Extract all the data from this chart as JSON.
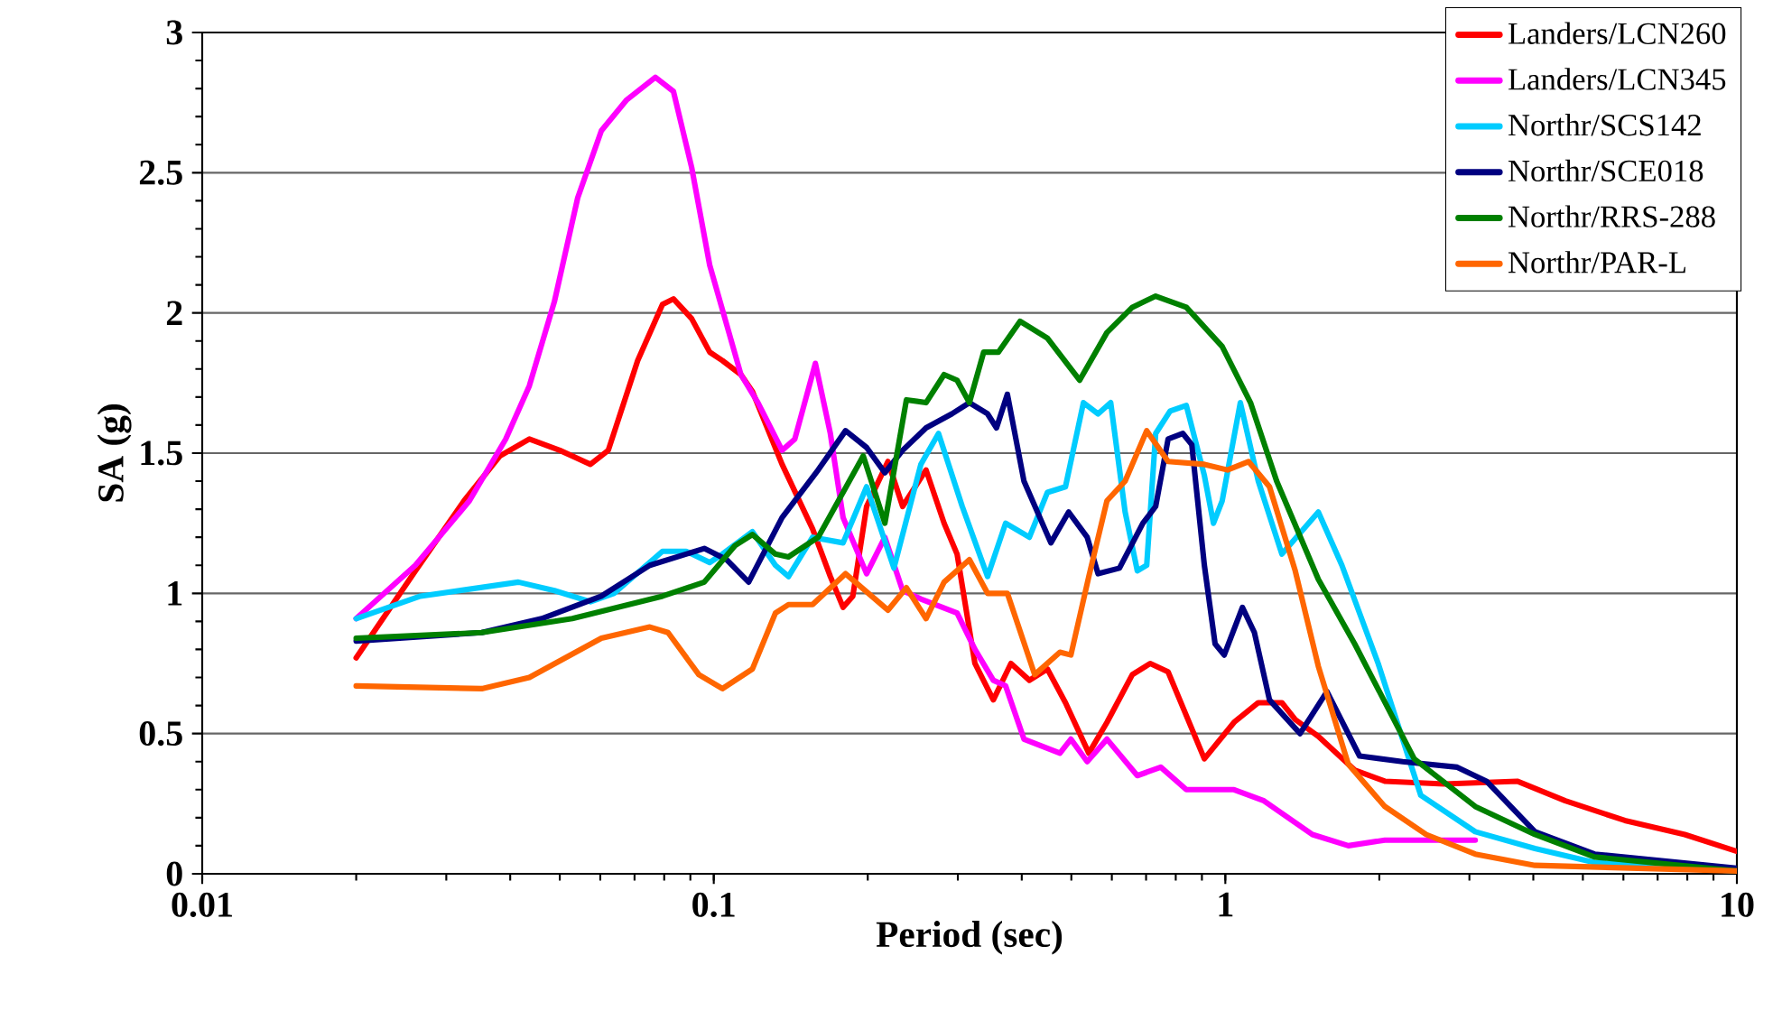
{
  "chart_data": {
    "type": "line",
    "xlabel": "Period (sec)",
    "ylabel": "SA (g)",
    "log": "x",
    "xlim": [
      0.01,
      10
    ],
    "ylim": [
      0,
      3
    ],
    "xticks": [
      0.01,
      0.1,
      1,
      10
    ],
    "yticks": [
      0,
      0.5,
      1,
      1.5,
      2,
      2.5,
      3
    ],
    "grid": "y",
    "legend": "top right",
    "series": [
      {
        "name": "Landers/LCN260",
        "color": "#ff0000",
        "x": [
          0.02,
          0.0261,
          0.0325,
          0.0382,
          0.0436,
          0.05,
          0.0574,
          0.0622,
          0.071,
          0.0794,
          0.0834,
          0.0905,
          0.0982,
          0.104,
          0.113,
          0.119,
          0.136,
          0.156,
          0.169,
          0.179,
          0.187,
          0.199,
          0.219,
          0.234,
          0.26,
          0.282,
          0.299,
          0.324,
          0.352,
          0.381,
          0.414,
          0.449,
          0.487,
          0.541,
          0.587,
          0.658,
          0.713,
          0.773,
          0.91,
          1.04,
          1.16,
          1.29,
          1.37,
          1.52,
          1.79,
          2.05,
          2.68,
          3.72,
          4.62,
          6.04,
          7.91,
          10
        ],
        "values": [
          0.77,
          1.08,
          1.33,
          1.49,
          1.55,
          1.51,
          1.46,
          1.51,
          1.83,
          2.03,
          2.05,
          1.98,
          1.86,
          1.83,
          1.78,
          1.72,
          1.46,
          1.23,
          1.06,
          0.95,
          0.99,
          1.31,
          1.47,
          1.31,
          1.44,
          1.25,
          1.14,
          0.75,
          0.62,
          0.75,
          0.69,
          0.73,
          0.61,
          0.43,
          0.54,
          0.71,
          0.75,
          0.72,
          0.41,
          0.54,
          0.61,
          0.61,
          0.55,
          0.49,
          0.37,
          0.33,
          0.32,
          0.33,
          0.26,
          0.19,
          0.14,
          0.08
        ]
      },
      {
        "name": "Landers/LCN345",
        "color": "#ff00ff",
        "x": [
          0.02,
          0.0261,
          0.0333,
          0.0392,
          0.0436,
          0.0488,
          0.0542,
          0.0603,
          0.0676,
          0.0769,
          0.0834,
          0.0905,
          0.0982,
          0.113,
          0.122,
          0.136,
          0.144,
          0.158,
          0.169,
          0.179,
          0.199,
          0.216,
          0.234,
          0.254,
          0.299,
          0.324,
          0.352,
          0.372,
          0.404,
          0.475,
          0.499,
          0.537,
          0.587,
          0.673,
          0.748,
          0.839,
          1.04,
          1.19,
          1.48,
          1.74,
          2.05,
          3.08
        ],
        "values": [
          0.91,
          1.1,
          1.33,
          1.55,
          1.74,
          2.04,
          2.41,
          2.65,
          2.76,
          2.84,
          2.79,
          2.52,
          2.17,
          1.78,
          1.68,
          1.51,
          1.55,
          1.82,
          1.57,
          1.27,
          1.07,
          1.2,
          1.01,
          0.98,
          0.93,
          0.8,
          0.69,
          0.67,
          0.48,
          0.43,
          0.48,
          0.4,
          0.48,
          0.35,
          0.38,
          0.3,
          0.3,
          0.26,
          0.14,
          0.1,
          0.12,
          0.12
        ]
      },
      {
        "name": "Northr/SCS142",
        "color": "#00ccff",
        "x": [
          0.02,
          0.0267,
          0.0415,
          0.0488,
          0.0574,
          0.0638,
          0.0794,
          0.0883,
          0.0982,
          0.104,
          0.119,
          0.132,
          0.14,
          0.156,
          0.179,
          0.199,
          0.225,
          0.254,
          0.275,
          0.306,
          0.343,
          0.372,
          0.414,
          0.449,
          0.487,
          0.528,
          0.564,
          0.597,
          0.637,
          0.673,
          0.702,
          0.731,
          0.78,
          0.839,
          0.91,
          0.948,
          0.986,
          1.07,
          1.16,
          1.29,
          1.52,
          1.69,
          1.99,
          2.41,
          3.08,
          4.03,
          5.27,
          10
        ],
        "values": [
          0.91,
          0.99,
          1.04,
          1.01,
          0.97,
          1.0,
          1.15,
          1.15,
          1.11,
          1.14,
          1.22,
          1.1,
          1.06,
          1.2,
          1.18,
          1.38,
          1.09,
          1.46,
          1.57,
          1.31,
          1.06,
          1.25,
          1.2,
          1.36,
          1.38,
          1.68,
          1.64,
          1.68,
          1.29,
          1.08,
          1.1,
          1.57,
          1.65,
          1.67,
          1.42,
          1.25,
          1.33,
          1.68,
          1.4,
          1.14,
          1.29,
          1.1,
          0.75,
          0.28,
          0.15,
          0.09,
          0.04,
          0.01
        ]
      },
      {
        "name": "Northr/SCE018",
        "color": "#000080",
        "x": [
          0.02,
          0.0352,
          0.0461,
          0.0603,
          0.075,
          0.0958,
          0.106,
          0.117,
          0.136,
          0.16,
          0.181,
          0.199,
          0.216,
          0.234,
          0.26,
          0.292,
          0.316,
          0.343,
          0.357,
          0.375,
          0.404,
          0.456,
          0.494,
          0.537,
          0.564,
          0.621,
          0.69,
          0.731,
          0.773,
          0.826,
          0.86,
          0.91,
          0.955,
          0.995,
          1.08,
          1.14,
          1.22,
          1.4,
          1.58,
          1.83,
          2.22,
          2.84,
          3.24,
          4.03,
          5.27,
          10
        ],
        "values": [
          0.83,
          0.86,
          0.91,
          0.99,
          1.1,
          1.16,
          1.12,
          1.04,
          1.27,
          1.44,
          1.58,
          1.52,
          1.43,
          1.51,
          1.59,
          1.64,
          1.68,
          1.64,
          1.59,
          1.71,
          1.4,
          1.18,
          1.29,
          1.2,
          1.07,
          1.09,
          1.25,
          1.31,
          1.55,
          1.57,
          1.53,
          1.1,
          0.82,
          0.78,
          0.95,
          0.86,
          0.62,
          0.5,
          0.65,
          0.42,
          0.4,
          0.38,
          0.33,
          0.15,
          0.07,
          0.02
        ]
      },
      {
        "name": "Northr/RRS-288",
        "color": "#008000",
        "x": [
          0.02,
          0.0352,
          0.0529,
          0.0794,
          0.0958,
          0.11,
          0.119,
          0.132,
          0.14,
          0.16,
          0.196,
          0.216,
          0.238,
          0.26,
          0.282,
          0.299,
          0.316,
          0.337,
          0.36,
          0.397,
          0.449,
          0.519,
          0.587,
          0.658,
          0.731,
          0.839,
          0.986,
          1.12,
          1.26,
          1.52,
          1.79,
          2.34,
          3.08,
          4.03,
          5.27,
          10
        ],
        "values": [
          0.84,
          0.86,
          0.91,
          0.99,
          1.04,
          1.17,
          1.21,
          1.14,
          1.13,
          1.2,
          1.49,
          1.25,
          1.69,
          1.68,
          1.78,
          1.76,
          1.68,
          1.86,
          1.86,
          1.97,
          1.91,
          1.76,
          1.93,
          2.02,
          2.06,
          2.02,
          1.88,
          1.68,
          1.4,
          1.05,
          0.82,
          0.41,
          0.24,
          0.14,
          0.06,
          0.01
        ]
      },
      {
        "name": "Northr/PAR-L",
        "color": "#ff6600",
        "x": [
          0.02,
          0.0352,
          0.0436,
          0.0603,
          0.075,
          0.0814,
          0.0935,
          0.104,
          0.119,
          0.132,
          0.14,
          0.156,
          0.181,
          0.219,
          0.238,
          0.26,
          0.282,
          0.316,
          0.343,
          0.375,
          0.424,
          0.475,
          0.499,
          0.541,
          0.587,
          0.637,
          0.702,
          0.773,
          0.91,
          1.01,
          1.11,
          1.22,
          1.37,
          1.52,
          1.74,
          2.05,
          2.47,
          3.08,
          4.03,
          10
        ],
        "values": [
          0.67,
          0.66,
          0.7,
          0.84,
          0.88,
          0.86,
          0.71,
          0.66,
          0.73,
          0.93,
          0.96,
          0.96,
          1.07,
          0.94,
          1.02,
          0.91,
          1.04,
          1.12,
          1.0,
          1.0,
          0.71,
          0.79,
          0.78,
          1.06,
          1.33,
          1.4,
          1.58,
          1.47,
          1.46,
          1.44,
          1.47,
          1.38,
          1.08,
          0.74,
          0.39,
          0.24,
          0.14,
          0.07,
          0.03,
          0.01
        ]
      }
    ]
  }
}
